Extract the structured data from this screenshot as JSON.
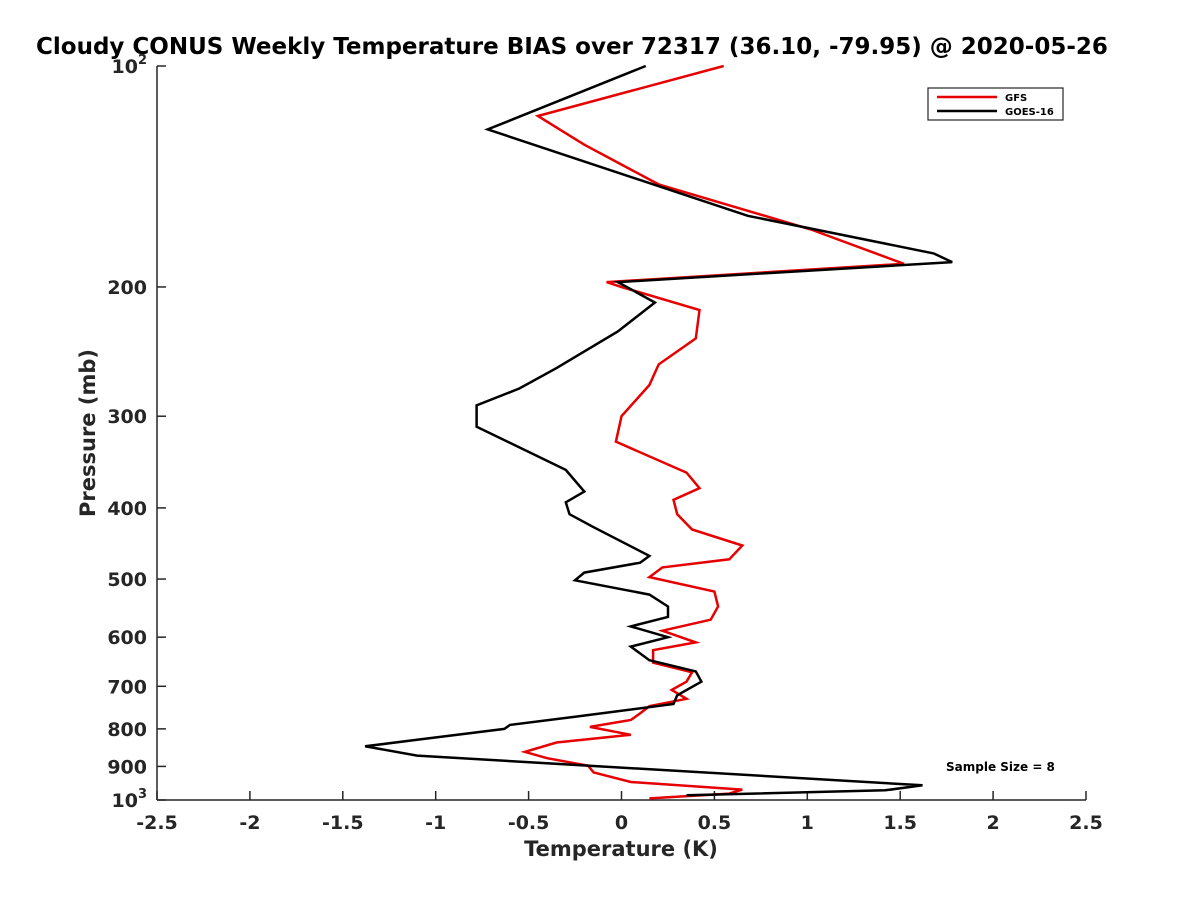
{
  "chart_data": {
    "type": "line",
    "title": "Cloudy CONUS Weekly Temperature BIAS over 72317 (36.10, -79.95) @ 2020-05-26",
    "xlabel": "Temperature (K)",
    "ylabel": "Pressure (mb)",
    "xlim": [
      -2.5,
      2.5
    ],
    "ylim": [
      1000,
      100
    ],
    "y_scale": "log",
    "x_ticks": [
      -2.5,
      -2,
      -1.5,
      -1,
      -0.5,
      0,
      0.5,
      1,
      1.5,
      2,
      2.5
    ],
    "x_tick_labels": [
      "-2.5",
      "-2",
      "-1.5",
      "-1",
      "-0.5",
      "0",
      "0.5",
      "1",
      "1.5",
      "2",
      "2.5"
    ],
    "y_ticks": [
      100,
      200,
      300,
      400,
      500,
      600,
      700,
      800,
      900,
      1000
    ],
    "y_tick_labels": [
      {
        "base": "10",
        "exp": "2"
      },
      {
        "base": "200",
        "exp": ""
      },
      {
        "base": "300",
        "exp": ""
      },
      {
        "base": "400",
        "exp": ""
      },
      {
        "base": "500",
        "exp": ""
      },
      {
        "base": "600",
        "exp": ""
      },
      {
        "base": "700",
        "exp": ""
      },
      {
        "base": "800",
        "exp": ""
      },
      {
        "base": "900",
        "exp": ""
      },
      {
        "base": "10",
        "exp": "3"
      }
    ],
    "grid": false,
    "legend_position": "top-right",
    "annotation": "Sample Size = 8",
    "series": [
      {
        "name": "GFS",
        "color": "#e60000",
        "points": [
          [
            0.55,
            100
          ],
          [
            -0.45,
            117
          ],
          [
            -0.2,
            128
          ],
          [
            0.2,
            145
          ],
          [
            1.02,
            167
          ],
          [
            1.52,
            186
          ],
          [
            -0.08,
            197
          ],
          [
            0.0,
            200
          ],
          [
            0.42,
            215
          ],
          [
            0.4,
            235
          ],
          [
            0.2,
            255
          ],
          [
            0.15,
            272
          ],
          [
            0.0,
            300
          ],
          [
            -0.03,
            325
          ],
          [
            0.35,
            358
          ],
          [
            0.42,
            376
          ],
          [
            0.28,
            390
          ],
          [
            0.3,
            408
          ],
          [
            0.38,
            428
          ],
          [
            0.65,
            450
          ],
          [
            0.58,
            470
          ],
          [
            0.22,
            482
          ],
          [
            0.15,
            497
          ],
          [
            0.5,
            520
          ],
          [
            0.52,
            545
          ],
          [
            0.48,
            568
          ],
          [
            0.22,
            588
          ],
          [
            0.4,
            610
          ],
          [
            0.17,
            625
          ],
          [
            0.17,
            650
          ],
          [
            0.38,
            670
          ],
          [
            0.35,
            690
          ],
          [
            0.27,
            708
          ],
          [
            0.35,
            728
          ],
          [
            0.15,
            745
          ],
          [
            0.1,
            762
          ],
          [
            0.05,
            778
          ],
          [
            -0.17,
            795
          ],
          [
            0.05,
            815
          ],
          [
            -0.35,
            835
          ],
          [
            -0.52,
            860
          ],
          [
            -0.4,
            877
          ],
          [
            -0.18,
            898
          ],
          [
            -0.15,
            917
          ],
          [
            0.05,
            945
          ],
          [
            0.65,
            968
          ],
          [
            0.58,
            980
          ],
          [
            0.15,
            995
          ]
        ]
      },
      {
        "name": "GOES-16",
        "color": "#000000",
        "points": [
          [
            0.13,
            100
          ],
          [
            -0.72,
            122
          ],
          [
            0.68,
            160
          ],
          [
            1.68,
            180
          ],
          [
            1.78,
            185
          ],
          [
            -0.02,
            197
          ],
          [
            0.18,
            210
          ],
          [
            -0.02,
            230
          ],
          [
            -0.35,
            258
          ],
          [
            -0.55,
            275
          ],
          [
            -0.78,
            290
          ],
          [
            -0.78,
            310
          ],
          [
            -0.3,
            355
          ],
          [
            -0.2,
            380
          ],
          [
            -0.3,
            393
          ],
          [
            -0.28,
            408
          ],
          [
            -0.15,
            425
          ],
          [
            0.15,
            465
          ],
          [
            0.1,
            475
          ],
          [
            -0.2,
            490
          ],
          [
            -0.25,
            502
          ],
          [
            0.15,
            525
          ],
          [
            0.25,
            545
          ],
          [
            0.25,
            563
          ],
          [
            0.05,
            580
          ],
          [
            0.25,
            600
          ],
          [
            0.05,
            618
          ],
          [
            0.15,
            645
          ],
          [
            0.4,
            668
          ],
          [
            0.43,
            690
          ],
          [
            0.3,
            720
          ],
          [
            0.28,
            740
          ],
          [
            -0.25,
            770
          ],
          [
            -0.6,
            790
          ],
          [
            -0.63,
            800
          ],
          [
            -1.1,
            828
          ],
          [
            -1.38,
            845
          ],
          [
            -1.1,
            870
          ],
          [
            1.62,
            955
          ],
          [
            1.42,
            970
          ],
          [
            0.35,
            985
          ]
        ]
      }
    ]
  }
}
